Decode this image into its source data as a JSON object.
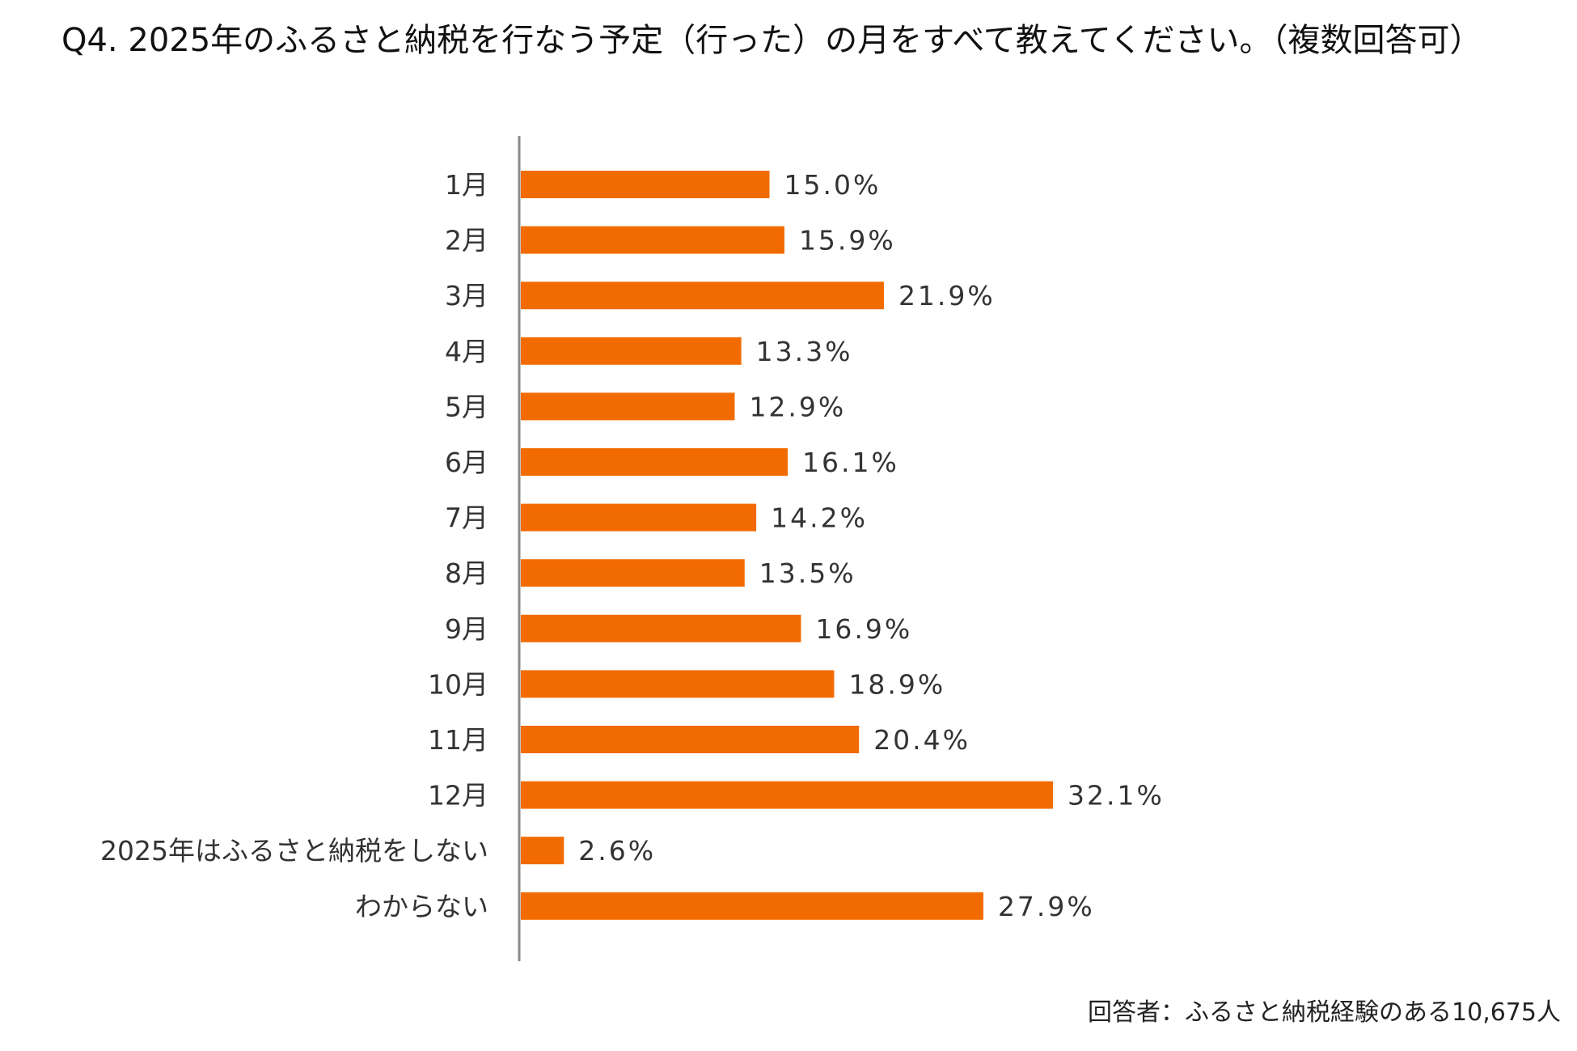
{
  "question": "Q4. 2025年のふるさと納税を行なう予定（行った）の月をすべて教えてください。（複数回答可）",
  "respondent_note": "回答者：ふるさと納税経験のある10,675人",
  "colors": {
    "bar": "#f26b00",
    "axis": "#8a8a8a"
  },
  "chart_data": {
    "type": "bar",
    "orientation": "horizontal",
    "categories": [
      "1月",
      "2月",
      "3月",
      "4月",
      "5月",
      "6月",
      "7月",
      "8月",
      "9月",
      "10月",
      "11月",
      "12月",
      "2025年はふるさと納税をしない",
      "わからない"
    ],
    "values": [
      15.0,
      15.9,
      21.9,
      13.3,
      12.9,
      16.1,
      14.2,
      13.5,
      16.9,
      18.9,
      20.4,
      32.1,
      2.6,
      27.9
    ],
    "value_labels": [
      "15.0%",
      "15.9%",
      "21.9%",
      "13.3%",
      "12.9%",
      "16.1%",
      "14.2%",
      "13.5%",
      "16.9%",
      "18.9%",
      "20.4%",
      "32.1%",
      "2.6%",
      "27.9%"
    ],
    "unit": "%",
    "grid": false,
    "legend": "none"
  }
}
